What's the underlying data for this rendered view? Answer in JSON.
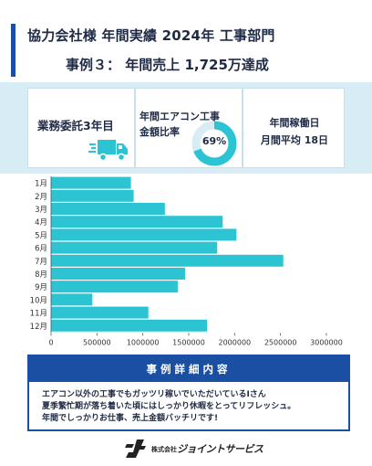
{
  "header": {
    "title_line1": "協力会社様 年間実績 2024年 工事部門",
    "title_line2_prefix": "事例３： 年間売上 ",
    "title_line2_highlight": "1,725万達成",
    "accent_color": "#1a4fa3",
    "highlight_color": "#f6dc6a"
  },
  "cards": {
    "contract": {
      "label": "業務委託3年目",
      "icon": "truck-icon"
    },
    "aircon": {
      "label_line1": "年間エアコン工事",
      "label_line2": "金額比率",
      "percent": 69,
      "percent_label": "69%"
    },
    "workdays": {
      "label_line1": "年間稼働日",
      "label_line2": "月間平均 18日"
    }
  },
  "chart_data": {
    "type": "bar",
    "orientation": "horizontal",
    "categories": [
      "1月",
      "2月",
      "3月",
      "4月",
      "5月",
      "6月",
      "7月",
      "8月",
      "9月",
      "10月",
      "11月",
      "12月"
    ],
    "values": [
      870000,
      900000,
      1240000,
      1870000,
      2020000,
      1810000,
      2530000,
      1460000,
      1380000,
      450000,
      1060000,
      1700000
    ],
    "xlim": [
      0,
      3000000
    ],
    "xticks": [
      0,
      500000,
      1000000,
      1500000,
      2000000,
      2500000,
      3000000
    ],
    "xtick_labels": [
      "0",
      "500000",
      "1000000",
      "1500000",
      "2000000",
      "2500000",
      "3000000"
    ],
    "bar_color": "#2cc3d3",
    "grid": false,
    "legend": "none"
  },
  "detail": {
    "heading": "事例詳細内容",
    "lines": [
      "エアコン以外の工事でもガッツリ稼いでいただいているIさん",
      "夏季繁忙期が落ち着いた頃にはしっかり休暇をとってリフレッシュ。",
      "年間でしっかりお仕事、売上金額バッチリです!"
    ]
  },
  "footer": {
    "company_prefix": "株式会社",
    "company_name": "ジョイントサービス"
  }
}
